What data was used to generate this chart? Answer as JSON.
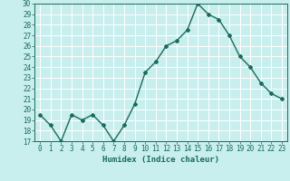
{
  "x": [
    0,
    1,
    2,
    3,
    4,
    5,
    6,
    7,
    8,
    9,
    10,
    11,
    12,
    13,
    14,
    15,
    16,
    17,
    18,
    19,
    20,
    21,
    22,
    23
  ],
  "y": [
    19.5,
    18.5,
    17.0,
    19.5,
    19.0,
    19.5,
    18.5,
    17.0,
    18.5,
    20.5,
    23.5,
    24.5,
    26.0,
    26.5,
    27.5,
    30.0,
    29.0,
    28.5,
    27.0,
    25.0,
    24.0,
    22.5,
    21.5,
    21.0
  ],
  "line_color": "#1a6b5a",
  "marker": "D",
  "marker_size": 2.0,
  "bg_color": "#c8eeee",
  "grid_color": "#aadddd",
  "xlabel": "Humidex (Indice chaleur)",
  "ylim": [
    17,
    30
  ],
  "xlim": [
    -0.5,
    23.5
  ],
  "yticks": [
    17,
    18,
    19,
    20,
    21,
    22,
    23,
    24,
    25,
    26,
    27,
    28,
    29,
    30
  ],
  "xticks": [
    0,
    1,
    2,
    3,
    4,
    5,
    6,
    7,
    8,
    9,
    10,
    11,
    12,
    13,
    14,
    15,
    16,
    17,
    18,
    19,
    20,
    21,
    22,
    23
  ],
  "tick_color": "#1a6b5a",
  "axis_color": "#1a6b5a",
  "label_fontsize": 6.5,
  "tick_fontsize": 5.5
}
